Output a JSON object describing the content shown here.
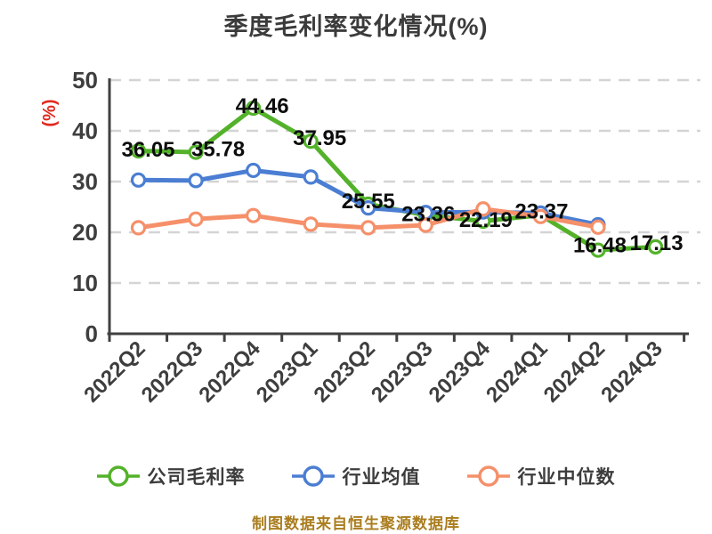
{
  "chart_data": {
    "type": "line",
    "title": "季度毛利率变化情况(%)",
    "ylabel": "(%)",
    "xlabel": "",
    "ylim": [
      0,
      50
    ],
    "yticks": [
      0,
      10,
      20,
      30,
      40,
      50
    ],
    "grid": "horizontal-dashed",
    "legend_position": "bottom",
    "categories": [
      "2022Q2",
      "2022Q3",
      "2022Q4",
      "2023Q1",
      "2023Q2",
      "2023Q3",
      "2023Q4",
      "2024Q1",
      "2024Q2",
      "2024Q3"
    ],
    "series": [
      {
        "name": "公司毛利率",
        "color": "#53b22a",
        "data_labels": true,
        "values": [
          36.05,
          35.78,
          44.46,
          37.95,
          25.55,
          23.36,
          22.19,
          23.37,
          16.48,
          17.13
        ]
      },
      {
        "name": "行业均值",
        "color": "#4b7ed3",
        "data_labels": false,
        "values": [
          30.3,
          30.2,
          32.2,
          30.9,
          24.8,
          23.9,
          24.0,
          23.8,
          21.5,
          null
        ]
      },
      {
        "name": "行业中位数",
        "color": "#f5906a",
        "data_labels": false,
        "values": [
          20.9,
          22.6,
          23.3,
          21.6,
          20.9,
          21.4,
          24.6,
          23.1,
          21.0,
          null
        ]
      }
    ]
  },
  "footer": {
    "text": "制图数据来自恒生聚源数据库"
  },
  "colors": {
    "axis": "#404040",
    "tick_label": "#3e3e3e",
    "title": "#3b3b3b",
    "grid": "#d4d4d4",
    "data_label": "#0d0d0d",
    "y_unit": "#e02a20",
    "footer": "#aa7d1e",
    "marker_fill": "#ffffff",
    "background": "#ffffff"
  }
}
